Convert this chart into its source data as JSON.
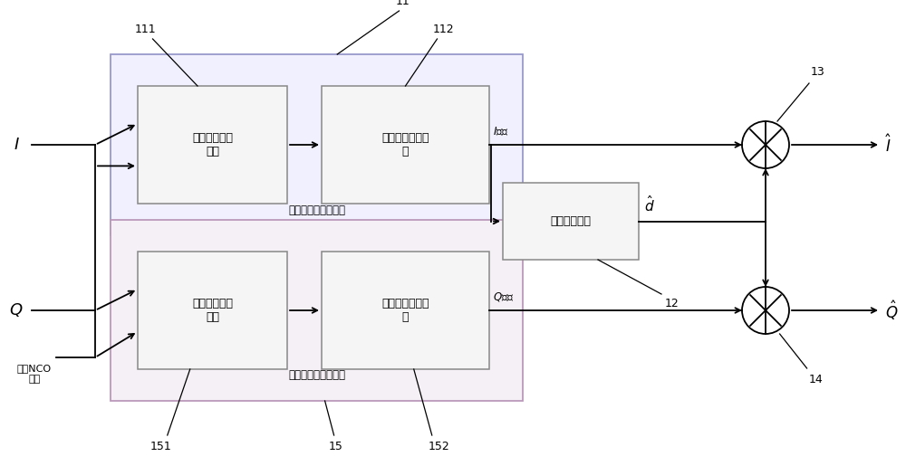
{
  "bg_color": "#ffffff",
  "line_color": "#000000",
  "box_fill": "#f5f5f5",
  "outer_box_fill_top": "#f0f0ff",
  "outer_box_fill_bot": "#f5f0f5",
  "outer_edge_top": "#9999cc",
  "outer_edge_bot": "#bb99bb",
  "inner_edge": "#888888",
  "label_box11": "第一相位旋转\n模块",
  "label_box12": "第一积分清零模\n块",
  "label_box21": "第二相位旋转\n模块",
  "label_box22": "第二积分清零模\n块",
  "label_sign": "符号判决模块",
  "label_outer1": "同向支路预处理模块",
  "label_outer2": "正交支路预处理模块",
  "label_local": "本地NCO\n输出",
  "num_11": "11",
  "num_111": "111",
  "num_112": "112",
  "num_12": "12",
  "num_13": "13",
  "num_14": "14",
  "num_15": "15",
  "num_151": "151",
  "num_152": "152",
  "figw": 10.0,
  "figh": 5.15,
  "dpi": 100
}
